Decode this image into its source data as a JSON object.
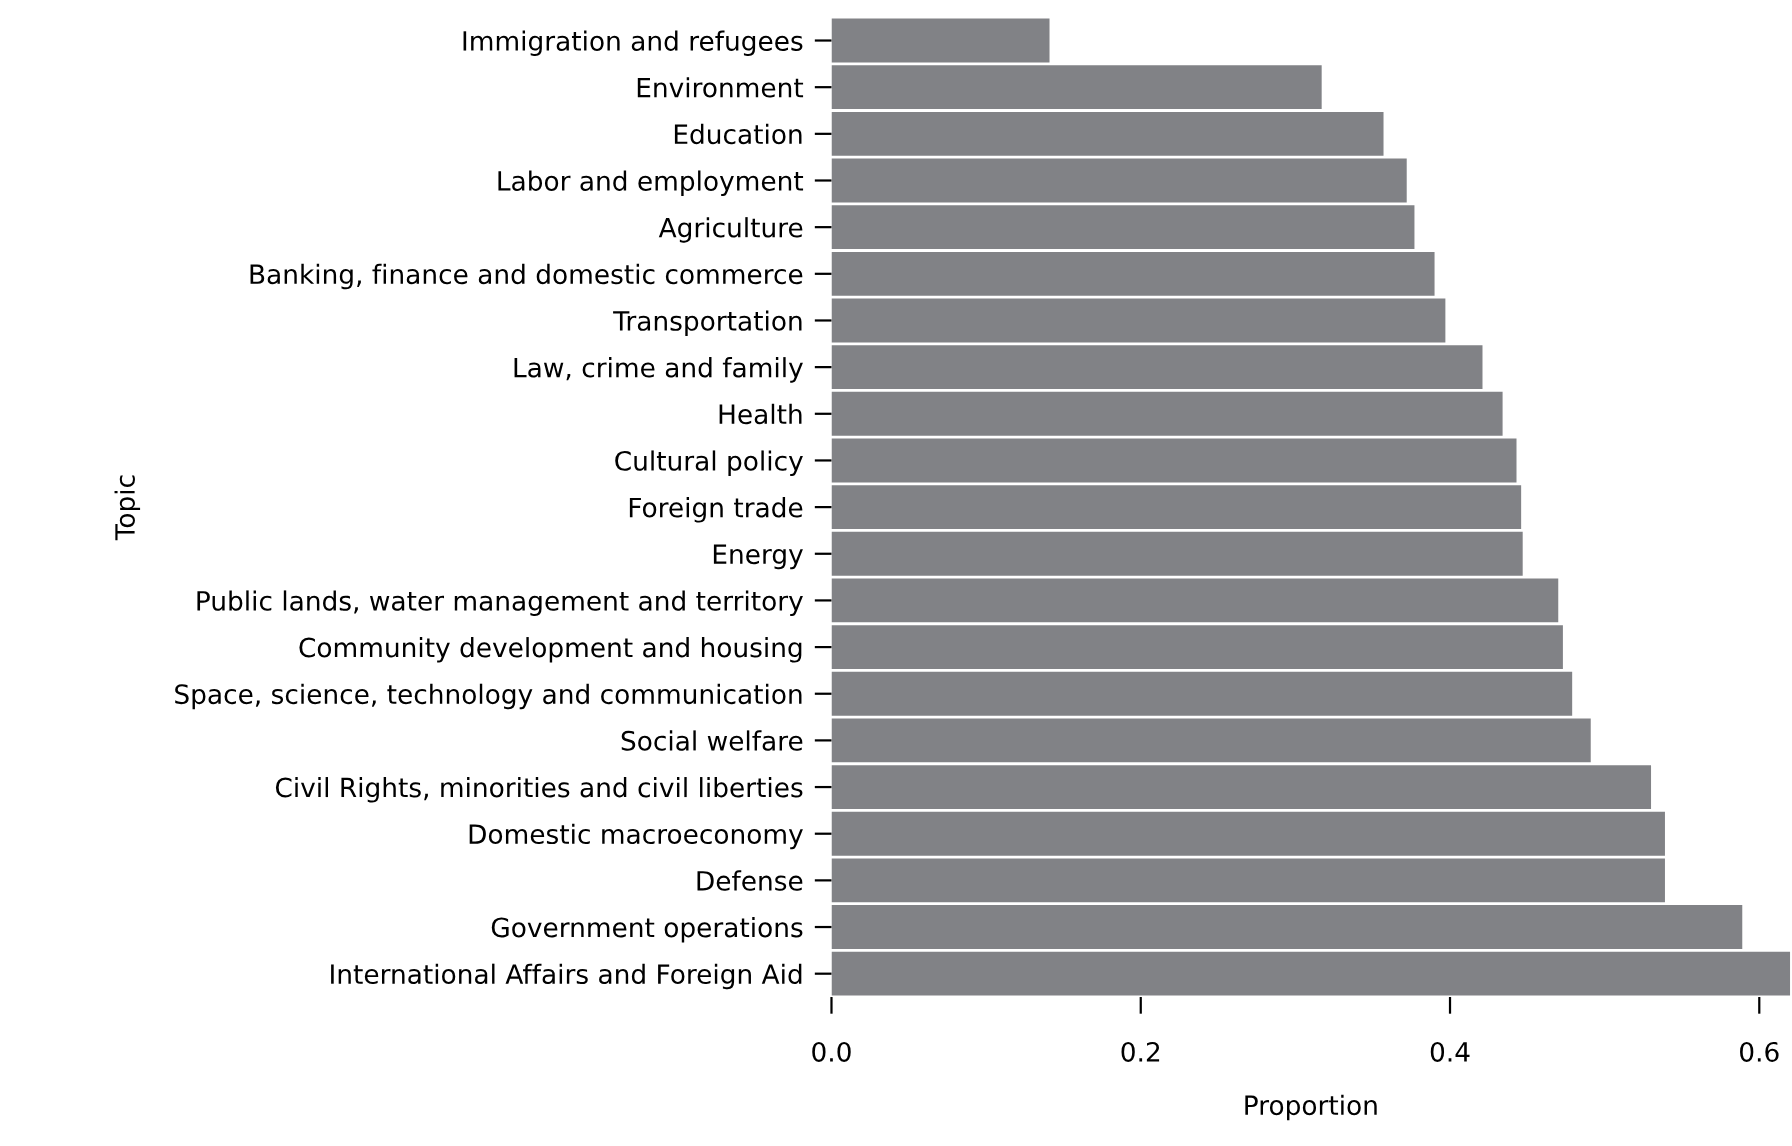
{
  "chart_data": {
    "type": "bar",
    "orientation": "horizontal",
    "xlabel": "Proportion",
    "ylabel": "Topic",
    "categories": [
      "Immigration and refugees",
      "Environment",
      "Education",
      "Labor and employment",
      "Agriculture",
      "Banking, finance and domestic commerce",
      "Transportation",
      "Law, crime and family",
      "Health",
      "Cultural policy",
      "Foreign trade",
      "Energy",
      "Public lands, water management and territory",
      "Community development and housing",
      "Space, science, technology and communication",
      "Social welfare",
      "Civil Rights, minorities and civil liberties",
      "Domestic macroeconomy",
      "Defense",
      "Government operations",
      "International Affairs and Foreign Aid"
    ],
    "values": [
      0.141,
      0.317,
      0.357,
      0.372,
      0.377,
      0.39,
      0.397,
      0.421,
      0.434,
      0.443,
      0.446,
      0.447,
      0.47,
      0.473,
      0.479,
      0.491,
      0.53,
      0.539,
      0.539,
      0.589,
      0.62
    ],
    "color": "#818286",
    "xlim": [
      0,
      0.62
    ],
    "xticks": [
      {
        "value": 0,
        "label": "0.0"
      },
      0.2,
      0.4,
      0.6
    ],
    "grid": false,
    "legend": false
  }
}
